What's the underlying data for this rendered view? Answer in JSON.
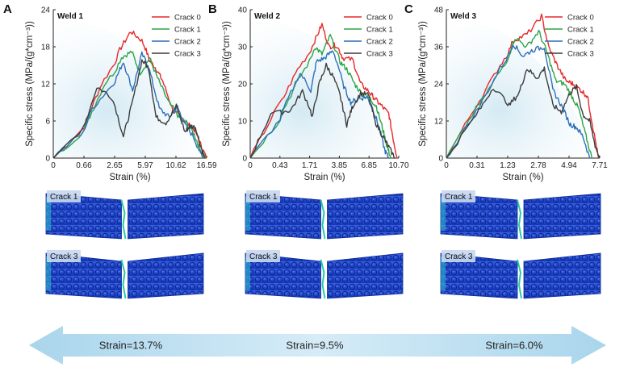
{
  "colors": {
    "crack0": "#e8282b",
    "crack1": "#2aa648",
    "crack2": "#2e6fb8",
    "crack3": "#3d3d3d",
    "arrow": "#b7dcef"
  },
  "chart_data": [
    {
      "type": "line",
      "panel": "A",
      "title": "Weld 1",
      "xlabel": "Strain (%)",
      "ylabel": "Specific stress (MPa/(g*cm⁻³))",
      "xlim": [
        0,
        16.59
      ],
      "ylim": [
        0,
        24
      ],
      "xticks": [
        0,
        0.66,
        2.65,
        5.97,
        10.62,
        16.59
      ],
      "xtick_labels": [
        "0",
        "0.66",
        "2.65",
        "5.97",
        "10.62",
        "16.59"
      ],
      "yticks": [
        0,
        6,
        12,
        18,
        24
      ],
      "ytick_labels": [
        "0",
        "6",
        "12",
        "18",
        "24"
      ],
      "legend": [
        "Crack 0",
        "Crack 1",
        "Crack 2",
        "Crack 3"
      ],
      "series": [
        {
          "name": "Crack 0",
          "x": [
            0,
            0.8,
            1.8,
            3.2,
            4.4,
            5.6,
            6.6,
            7.6,
            8.6,
            10.2,
            11.6,
            12.8,
            14.4,
            15.6,
            16.59
          ],
          "y": [
            0,
            6,
            12,
            17.5,
            20.5,
            19,
            15.8,
            14.5,
            12.5,
            7.6,
            6.6,
            5.6,
            4.4,
            1.8,
            0
          ]
        },
        {
          "name": "Crack 1",
          "x": [
            0,
            0.9,
            2.0,
            3.4,
            4.5,
            5.4,
            6.6,
            8.0,
            9.5,
            11.2,
            12.6,
            14.2,
            15.4,
            16.3
          ],
          "y": [
            0,
            6,
            12,
            16.3,
            17.2,
            13.8,
            16.2,
            12.5,
            9.0,
            6.6,
            5.8,
            3.8,
            1.2,
            0
          ]
        },
        {
          "name": "Crack 2",
          "x": [
            0,
            1.2,
            2.6,
            3.6,
            4.6,
            5.6,
            6.6,
            8.1,
            9.6,
            10.9,
            12.2,
            14.0,
            15.8
          ],
          "y": [
            0,
            8,
            12.2,
            15.6,
            11.0,
            16.8,
            14.2,
            8.0,
            6.6,
            8.3,
            5.6,
            3.5,
            0
          ]
        },
        {
          "name": "Crack 3",
          "x": [
            0,
            1.5,
            2.4,
            3.6,
            4.5,
            5.6,
            6.5,
            7.6,
            9.1,
            10.7,
            12.4,
            13.3,
            14.4,
            15.6,
            16.2
          ],
          "y": [
            0,
            11.5,
            10,
            3.5,
            8.5,
            15.8,
            14.5,
            6.6,
            5.7,
            8.4,
            4.2,
            5.2,
            5.0,
            1.5,
            0
          ]
        }
      ]
    },
    {
      "type": "line",
      "panel": "B",
      "title": "Weld 2",
      "xlabel": "Strain (%)",
      "ylabel": "Specific stress (MPa/(g*cm⁻³))",
      "xlim": [
        0,
        10.7
      ],
      "ylim": [
        0,
        40
      ],
      "xticks": [
        0,
        0.43,
        1.71,
        3.85,
        6.85,
        10.7
      ],
      "xtick_labels": [
        "0",
        "0.43",
        "1.71",
        "3.85",
        "6.85",
        "10.70"
      ],
      "yticks": [
        0,
        10,
        20,
        30,
        40
      ],
      "ytick_labels": [
        "0",
        "10",
        "20",
        "30",
        "40"
      ],
      "legend": [
        "Crack 0",
        "Crack 1",
        "Crack 2",
        "Crack 3"
      ],
      "series": [
        {
          "name": "Crack 0",
          "x": [
            0,
            0.4,
            1.2,
            2.0,
            2.6,
            3.1,
            3.6,
            4.2,
            5.2,
            6.0,
            6.8,
            7.6,
            8.5,
            9.4,
            10.0,
            10.5
          ],
          "y": [
            0,
            14,
            24,
            31,
            36,
            30,
            30.5,
            27,
            26.5,
            20,
            18,
            16,
            14,
            12,
            5,
            0
          ]
        },
        {
          "name": "Crack 1",
          "x": [
            0,
            0.5,
            1.3,
            2.1,
            2.6,
            3.2,
            3.9,
            4.6,
            5.4,
            6.2,
            7.0,
            7.8,
            8.6,
            9.2,
            9.7
          ],
          "y": [
            0,
            12,
            22,
            30,
            28,
            33,
            26,
            24,
            20,
            17,
            16,
            14,
            8,
            3,
            0
          ]
        },
        {
          "name": "Crack 2",
          "x": [
            0,
            0.5,
            1.3,
            1.8,
            2.2,
            2.8,
            3.4,
            4.2,
            5.0,
            5.8,
            6.6,
            7.4,
            8.2,
            8.9,
            9.4
          ],
          "y": [
            0,
            12,
            23,
            18,
            26,
            27,
            29,
            20,
            15,
            16,
            16.5,
            13,
            8,
            2,
            0
          ]
        },
        {
          "name": "Crack 3",
          "x": [
            0,
            0.3,
            0.9,
            1.4,
            1.9,
            2.4,
            2.9,
            3.4,
            4.0,
            4.6,
            5.2,
            6.0,
            6.8,
            7.6,
            8.6,
            9.4,
            10.2
          ],
          "y": [
            0,
            12,
            13,
            18,
            11,
            20,
            25,
            22,
            16,
            9,
            14,
            17.5,
            17,
            10,
            6,
            3,
            0
          ]
        }
      ]
    },
    {
      "type": "line",
      "panel": "C",
      "title": "Weld 3",
      "xlabel": "Strain (%)",
      "ylabel": "Specific stress (MPa/(g*cm⁻³))",
      "xlim": [
        0,
        7.71
      ],
      "ylim": [
        0,
        48
      ],
      "xticks": [
        0,
        0.31,
        1.23,
        2.78,
        4.94,
        7.71
      ],
      "xtick_labels": [
        "0",
        "0.31",
        "1.23",
        "2.78",
        "4.94",
        "7.71"
      ],
      "yticks": [
        0,
        12,
        24,
        36,
        48
      ],
      "ytick_labels": [
        "0",
        "12",
        "24",
        "36",
        "48"
      ],
      "legend": [
        "Crack 0",
        "Crack 1",
        "Crack 2",
        "Crack 3"
      ],
      "series": [
        {
          "name": "Crack 0",
          "x": [
            0,
            0.3,
            1.0,
            1.5,
            2.2,
            3.0,
            3.5,
            4.1,
            4.7,
            5.3,
            6.0,
            6.6,
            7.1,
            7.6
          ],
          "y": [
            0,
            17,
            30,
            38,
            40,
            46,
            36,
            30,
            25,
            24,
            22,
            20,
            10,
            0
          ]
        },
        {
          "name": "Crack 1",
          "x": [
            0,
            0.3,
            1.0,
            1.6,
            2.2,
            2.8,
            3.4,
            4.0,
            4.6,
            5.2,
            5.8,
            6.4,
            7.0
          ],
          "y": [
            0,
            16,
            28,
            39,
            36,
            41,
            34,
            25,
            24,
            20,
            16,
            8,
            0
          ]
        },
        {
          "name": "Crack 2",
          "x": [
            0,
            0.3,
            1.0,
            1.5,
            2.0,
            2.5,
            3.2,
            3.8,
            4.4,
            5.0,
            5.6,
            6.2,
            6.8
          ],
          "y": [
            0,
            15,
            29,
            37,
            33,
            35,
            36,
            22,
            17,
            11,
            10,
            7,
            0
          ]
        },
        {
          "name": "Crack 3",
          "x": [
            0,
            0.3,
            0.8,
            1.3,
            1.8,
            2.2,
            2.7,
            3.2,
            3.8,
            4.4,
            5.0,
            5.6,
            6.2,
            6.8,
            7.3,
            7.7
          ],
          "y": [
            0,
            14,
            23,
            17,
            21,
            29,
            26,
            29,
            17,
            15,
            21,
            23,
            14,
            12,
            4,
            0
          ]
        }
      ]
    }
  ],
  "simulations": [
    {
      "panel": "A",
      "top_label": "Crack 1",
      "bottom_label": "Crack 3"
    },
    {
      "panel": "B",
      "top_label": "Crack 1",
      "bottom_label": "Crack 3"
    },
    {
      "panel": "C",
      "top_label": "Crack 1",
      "bottom_label": "Crack 3"
    }
  ],
  "strain_arrow": {
    "labels": [
      "Strain=13.7%",
      "Strain=9.5%",
      "Strain=6.0%"
    ]
  }
}
